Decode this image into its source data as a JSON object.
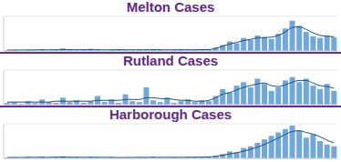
{
  "chart_data": [
    {
      "type": "bar",
      "title": "Melton Cases",
      "categories": [
        null,
        null,
        null,
        null,
        null,
        null,
        null,
        null,
        null,
        null,
        null,
        null,
        null,
        null,
        null,
        null,
        null,
        null,
        null,
        null,
        null,
        null,
        null,
        null,
        null,
        null,
        null,
        null,
        null,
        null,
        null,
        null,
        null,
        null,
        null,
        null,
        null,
        null,
        null,
        null,
        null,
        null,
        null,
        null,
        null,
        null,
        null,
        null
      ],
      "series": [
        {
          "type": "bar",
          "color": "#6fa8dc",
          "values": [
            8,
            12,
            6,
            15,
            10,
            20,
            9,
            14,
            30,
            12,
            8,
            18,
            25,
            10,
            6,
            14,
            20,
            12,
            9,
            16,
            11,
            22,
            14,
            8,
            12,
            18,
            10,
            15,
            20,
            12,
            40,
            70,
            110,
            90,
            150,
            130,
            180,
            160,
            140,
            200,
            260,
            350,
            290,
            220,
            170,
            150,
            180,
            160
          ]
        },
        {
          "type": "line",
          "color": "#1f4e79",
          "values": [
            10,
            10,
            11,
            12,
            12,
            13,
            13,
            14,
            15,
            15,
            14,
            14,
            15,
            14,
            13,
            13,
            14,
            14,
            13,
            13,
            14,
            15,
            14,
            13,
            13,
            14,
            14,
            14,
            15,
            16,
            30,
            55,
            80,
            100,
            120,
            135,
            150,
            155,
            160,
            180,
            220,
            270,
            280,
            250,
            210,
            180,
            170,
            165
          ]
        }
      ],
      "ylim": [
        0,
        400
      ],
      "yticks": [
        0,
        100,
        200,
        300,
        400
      ],
      "grid": true,
      "tick_labels": false
    },
    {
      "type": "bar",
      "title": "Rutland Cases",
      "categories": [
        null,
        null,
        null,
        null,
        null,
        null,
        null,
        null,
        null,
        null,
        null,
        null,
        null,
        null,
        null,
        null,
        null,
        null,
        null,
        null,
        null,
        null,
        null,
        null,
        null,
        null,
        null,
        null,
        null,
        null,
        null,
        null,
        null,
        null,
        null,
        null,
        null,
        null,
        null,
        null,
        null,
        null,
        null,
        null,
        null,
        null,
        null,
        null
      ],
      "series": [
        {
          "type": "bar",
          "color": "#6fa8dc",
          "values": [
            2,
            3,
            1,
            4,
            2,
            6,
            3,
            2,
            8,
            3,
            5,
            2,
            4,
            10,
            3,
            6,
            2,
            12,
            4,
            3,
            20,
            5,
            3,
            8,
            2,
            4,
            6,
            3,
            5,
            4,
            10,
            18,
            14,
            22,
            26,
            20,
            30,
            24,
            16,
            20,
            28,
            32,
            26,
            30,
            22,
            18,
            24,
            16
          ]
        },
        {
          "type": "line",
          "color": "#1f4e79",
          "values": [
            3,
            3,
            3,
            3,
            3,
            3,
            3,
            4,
            4,
            4,
            4,
            4,
            4,
            5,
            5,
            5,
            5,
            6,
            6,
            6,
            8,
            8,
            7,
            7,
            6,
            5,
            5,
            4,
            4,
            5,
            8,
            12,
            14,
            17,
            20,
            22,
            24,
            25,
            22,
            21,
            23,
            26,
            28,
            28,
            25,
            22,
            21,
            19
          ]
        }
      ],
      "ylim": [
        0,
        40
      ],
      "yticks": [
        0,
        10,
        20,
        30,
        40
      ],
      "grid": true,
      "tick_labels": false
    },
    {
      "type": "bar",
      "title": "Harborough Cases",
      "categories": [
        null,
        null,
        null,
        null,
        null,
        null,
        null,
        null,
        null,
        null,
        null,
        null,
        null,
        null,
        null,
        null,
        null,
        null,
        null,
        null,
        null,
        null,
        null,
        null,
        null,
        null,
        null,
        null,
        null,
        null,
        null,
        null,
        null,
        null,
        null,
        null,
        null,
        null,
        null,
        null,
        null,
        null,
        null,
        null,
        null,
        null,
        null,
        null
      ],
      "series": [
        {
          "type": "bar",
          "color": "#6fa8dc",
          "values": [
            4,
            6,
            3,
            8,
            5,
            10,
            4,
            6,
            12,
            5,
            7,
            4,
            9,
            6,
            3,
            8,
            5,
            6,
            4,
            7,
            5,
            9,
            6,
            4,
            7,
            5,
            8,
            6,
            10,
            8,
            15,
            25,
            40,
            35,
            60,
            70,
            90,
            110,
            130,
            150,
            170,
            190,
            160,
            120,
            140,
            100,
            80,
            70
          ]
        },
        {
          "type": "line",
          "color": "#1f4e79",
          "values": [
            5,
            5,
            5,
            6,
            6,
            6,
            6,
            7,
            7,
            7,
            6,
            6,
            6,
            6,
            6,
            6,
            5,
            5,
            5,
            6,
            6,
            6,
            6,
            6,
            6,
            6,
            6,
            7,
            7,
            8,
            12,
            18,
            26,
            32,
            42,
            52,
            65,
            80,
            98,
            118,
            138,
            155,
            160,
            150,
            140,
            125,
            105,
            90
          ]
        }
      ],
      "ylim": [
        0,
        200
      ],
      "yticks": [
        0,
        50,
        100,
        150,
        200
      ],
      "grid": true,
      "tick_labels": false
    }
  ]
}
